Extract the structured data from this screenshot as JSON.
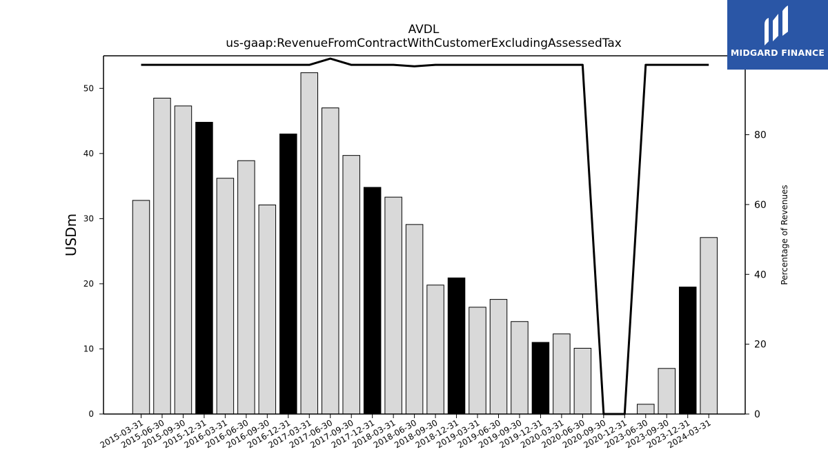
{
  "chart_data": {
    "type": "bar",
    "title": "AVDL",
    "subtitle": "us-gaap:RevenueFromContractWithCustomerExcludingAssessedTax",
    "ylabel": "USDm",
    "y2label": "Percentage of Revenues",
    "ylim": [
      0,
      55
    ],
    "y2lim": [
      0,
      102.6
    ],
    "yticks": [
      0,
      10,
      20,
      30,
      40,
      50
    ],
    "y2ticks": [
      0,
      20,
      40,
      60,
      80,
      100
    ],
    "categories": [
      "2015-03-31",
      "2015-06-30",
      "2015-09-30",
      "2015-12-31",
      "2016-03-31",
      "2016-06-30",
      "2016-09-30",
      "2016-12-31",
      "2017-03-31",
      "2017-06-30",
      "2017-09-30",
      "2017-12-31",
      "2018-03-31",
      "2018-06-30",
      "2018-09-30",
      "2018-12-31",
      "2019-03-31",
      "2019-06-30",
      "2019-09-30",
      "2019-12-31",
      "2020-03-31",
      "2020-06-30",
      "2020-09-30",
      "2020-12-31",
      "2023-06-30",
      "2023-09-30",
      "2023-12-31",
      "2024-03-31"
    ],
    "series": [
      {
        "type": "bar",
        "values": [
          32.8,
          48.5,
          47.3,
          44.8,
          36.2,
          38.9,
          32.1,
          43.0,
          52.4,
          47.0,
          39.7,
          34.8,
          33.3,
          29.1,
          19.8,
          20.9,
          16.4,
          17.6,
          14.2,
          11.0,
          12.3,
          10.1,
          0,
          0,
          1.5,
          7.0,
          19.5,
          27.1
        ],
        "highlight": [
          false,
          false,
          false,
          true,
          false,
          false,
          false,
          true,
          false,
          false,
          false,
          true,
          false,
          false,
          false,
          true,
          false,
          false,
          false,
          true,
          false,
          false,
          false,
          false,
          false,
          false,
          true,
          false
        ],
        "color": "#d9d9d9",
        "highlight_color": "#000000"
      },
      {
        "type": "line",
        "axis": "right",
        "values": [
          100,
          100,
          100,
          100,
          100,
          100,
          100,
          100,
          100,
          101.8,
          100,
          100,
          100,
          99.6,
          100,
          100,
          100,
          100,
          100,
          100,
          100,
          100,
          0,
          0,
          100,
          100,
          100,
          100
        ],
        "color": "#000000"
      }
    ],
    "grid": false,
    "legend": "none"
  },
  "logo": {
    "text": "MIDGARD FINANCE"
  }
}
